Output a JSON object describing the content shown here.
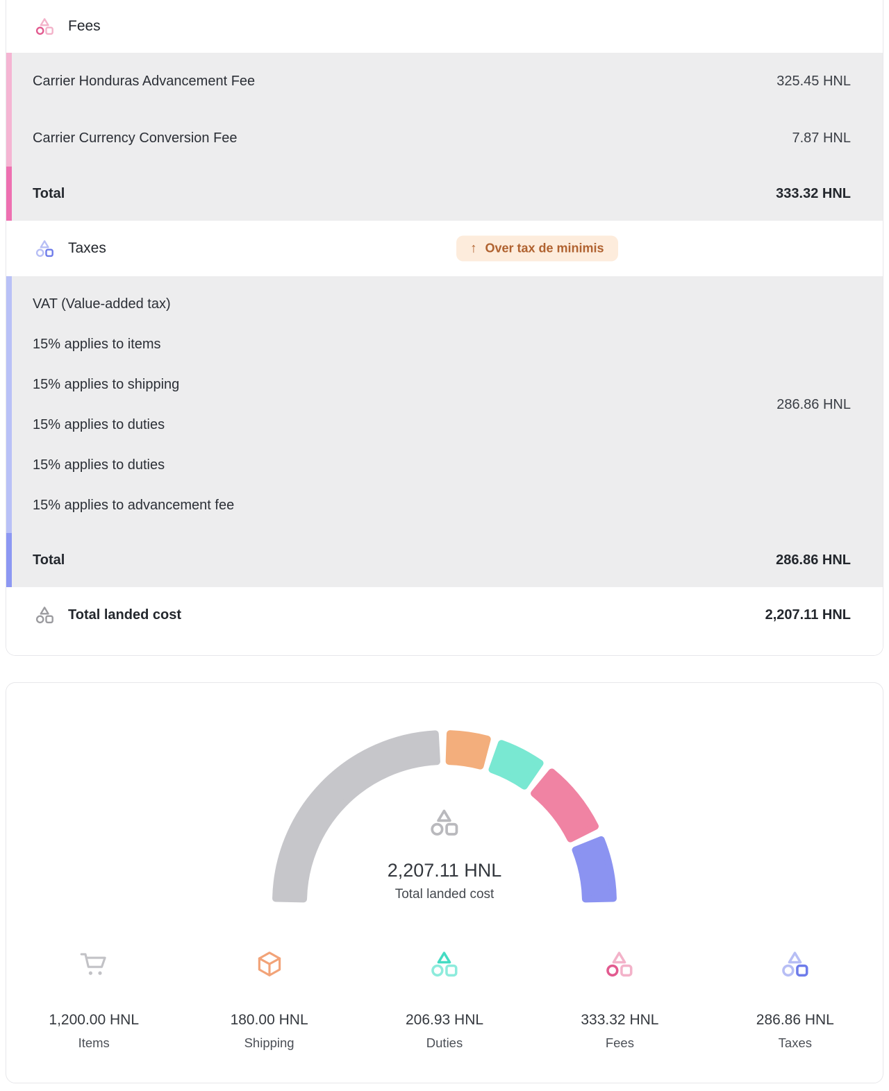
{
  "currency": "HNL",
  "fees_section": {
    "title": "Fees",
    "icon_colors": {
      "triangle": "#f3b2c9",
      "circle": "#e25a8f",
      "square": "#f3b2c9"
    },
    "accent_light": "#f5b5d3",
    "accent_dark": "#ee70b1",
    "rows": [
      {
        "label": "Carrier Honduras Advancement Fee",
        "value": "325.45 HNL"
      },
      {
        "label": "Carrier Currency Conversion Fee",
        "value": "7.87 HNL"
      }
    ],
    "total": {
      "label": "Total",
      "value": "333.32 HNL"
    }
  },
  "taxes_section": {
    "title": "Taxes",
    "icon_colors": {
      "triangle": "#b7bef5",
      "circle": "#b7bef5",
      "square": "#6e7cea"
    },
    "accent_light": "#b9c1f7",
    "accent_dark": "#8d98f3",
    "badge": {
      "arrow": "↑",
      "text": "Over tax de minimis",
      "bg": "#fdecdc",
      "fg": "#b06230"
    },
    "vat_block": {
      "lines": [
        "VAT (Value-added tax)",
        "15% applies to items",
        "15% applies to shipping",
        "15% applies to duties",
        "15% applies to duties",
        "15% applies to advancement fee"
      ],
      "value": "286.86 HNL"
    },
    "total": {
      "label": "Total",
      "value": "286.86 HNL"
    }
  },
  "total_landed_cost": {
    "label": "Total landed cost",
    "value": "2,207.11 HNL",
    "icon_colors": {
      "triangle": "#9b9b9f",
      "circle": "#9b9b9f",
      "square": "#9b9b9f"
    }
  },
  "chart_data": {
    "type": "donut",
    "shape": "half-gauge",
    "arc_total_degrees": 180,
    "gap_degrees": 5,
    "legend_position": "bottom",
    "center_value": "2,207.11 HNL",
    "center_label": "Total landed cost",
    "center_icon_colors": {
      "triangle": "#b9b9bd",
      "circle": "#b9b9bd",
      "square": "#b9b9bd"
    },
    "categories": [
      "Items",
      "Shipping",
      "Duties",
      "Fees",
      "Taxes"
    ],
    "values": [
      1200.0,
      180.0,
      206.93,
      333.32,
      286.86
    ],
    "series": [
      {
        "name": "Items",
        "value": 1200.0,
        "display": "1,200.00 HNL",
        "color": "#c6c6ca",
        "icon": "cart",
        "icon_color": "#c2c2c6"
      },
      {
        "name": "Shipping",
        "value": 180.0,
        "display": "180.00 HNL",
        "color": "#f3ae7c",
        "icon": "box",
        "icon_color": "#f2a378"
      },
      {
        "name": "Duties",
        "value": 206.93,
        "display": "206.93 HNL",
        "color": "#79e8d2",
        "icon": "cluster",
        "icon_colors": {
          "triangle": "#44dcc3",
          "circle": "#8debdc",
          "square": "#8debdc"
        }
      },
      {
        "name": "Fees",
        "value": 333.32,
        "display": "333.32 HNL",
        "color": "#f083a3",
        "icon": "cluster",
        "icon_colors": {
          "triangle": "#f3b2c9",
          "circle": "#e25a8f",
          "square": "#f3b2c9"
        }
      },
      {
        "name": "Taxes",
        "value": 286.86,
        "display": "286.86 HNL",
        "color": "#8b93f1",
        "icon": "cluster",
        "icon_colors": {
          "triangle": "#b7bef5",
          "circle": "#b7bef5",
          "square": "#6e7cea"
        }
      }
    ]
  }
}
